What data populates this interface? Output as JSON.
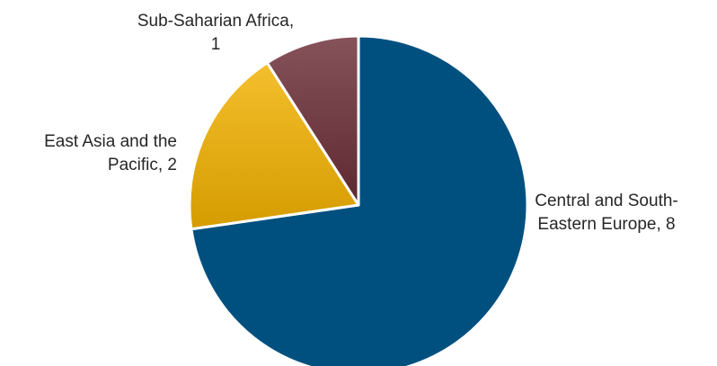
{
  "chart_data": {
    "type": "pie",
    "title": "",
    "legend": "none",
    "slices": [
      {
        "name": "Central and South-Eastern Europe",
        "value": 8,
        "label_lines": [
          "Central and South-",
          "Eastern Europe, 8"
        ],
        "color": "#00507f"
      },
      {
        "name": "East Asia and the Pacific",
        "value": 2,
        "label_lines": [
          "East Asia and the",
          "Pacific, 2"
        ],
        "color": "#f2b100"
      },
      {
        "name": "Sub-Saharian Africa",
        "value": 1,
        "label_lines": [
          "Sub-Saharian Africa,",
          "1"
        ],
        "color": "#6b2d37"
      }
    ]
  }
}
